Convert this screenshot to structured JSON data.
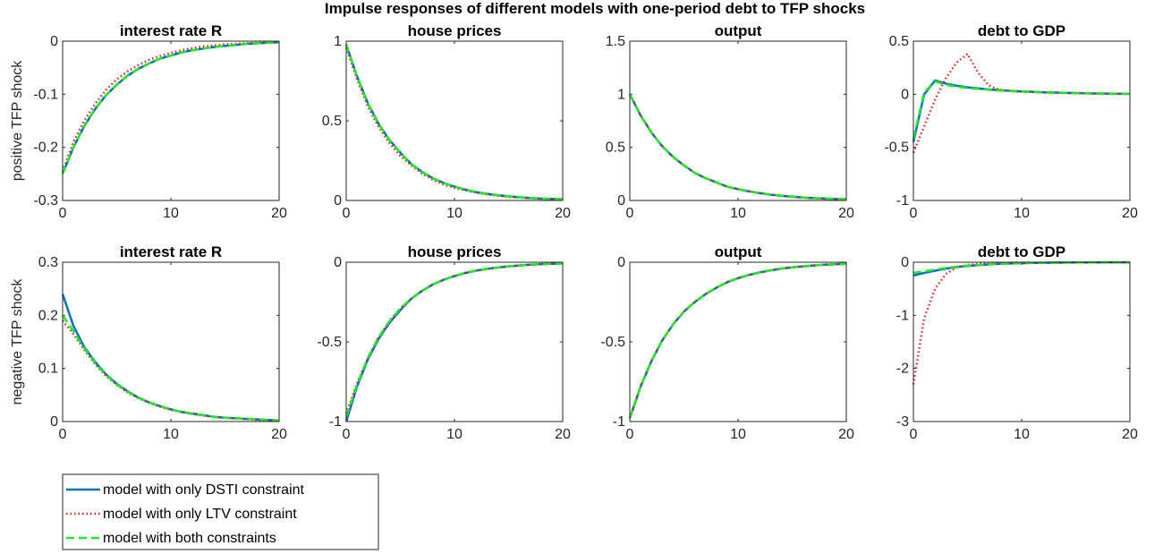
{
  "figure": {
    "title": "Impulse responses of different models with one-period debt to TFP shocks",
    "row_labels": [
      "positive TFP shock",
      "negative TFP shock"
    ]
  },
  "legend": {
    "placement": "bottom-left",
    "entries": [
      {
        "label": "model with only DSTI constraint",
        "color": "#0072BD",
        "style": "solid"
      },
      {
        "label": "model with only LTV constraint",
        "color": "#D62728",
        "style": "dotted"
      },
      {
        "label": "model with both constraints",
        "color": "#22E622",
        "style": "dashed"
      }
    ]
  },
  "chart_data": [
    {
      "type": "line",
      "row": 0,
      "col": 0,
      "title": "interest rate R",
      "xlim": [
        0,
        20
      ],
      "ylim": [
        -0.3,
        0
      ],
      "xticks": [
        "0",
        "10",
        "20"
      ],
      "yticks": [
        "-0.3",
        "-0.2",
        "-0.1",
        "0"
      ],
      "series": [
        {
          "name": "model with only DSTI constraint",
          "values": [
            -0.25,
            -0.2,
            -0.16,
            -0.128,
            -0.102,
            -0.082,
            -0.065,
            -0.052,
            -0.042,
            -0.033,
            -0.027,
            -0.021,
            -0.017,
            -0.014,
            -0.011,
            -0.009,
            -0.007,
            -0.005,
            -0.004,
            -0.003,
            -0.002
          ]
        },
        {
          "name": "model with only LTV constraint",
          "values": [
            -0.245,
            -0.19,
            -0.15,
            -0.118,
            -0.092,
            -0.072,
            -0.057,
            -0.045,
            -0.035,
            -0.028,
            -0.022,
            -0.017,
            -0.013,
            -0.01,
            -0.008,
            -0.006,
            -0.005,
            -0.004,
            -0.003,
            -0.002,
            -0.001
          ]
        },
        {
          "name": "model with both constraints",
          "values": [
            -0.25,
            -0.2,
            -0.16,
            -0.128,
            -0.102,
            -0.082,
            -0.065,
            -0.052,
            -0.042,
            -0.033,
            -0.027,
            -0.021,
            -0.017,
            -0.014,
            -0.011,
            -0.009,
            -0.007,
            -0.005,
            -0.004,
            -0.003,
            -0.002
          ]
        }
      ]
    },
    {
      "type": "line",
      "row": 0,
      "col": 1,
      "title": "house prices",
      "xlim": [
        0,
        20
      ],
      "ylim": [
        0,
        1
      ],
      "xticks": [
        "0",
        "10",
        "20"
      ],
      "yticks": [
        "0",
        "0.5",
        "1"
      ],
      "series": [
        {
          "name": "model with only DSTI constraint",
          "values": [
            0.98,
            0.78,
            0.61,
            0.48,
            0.38,
            0.3,
            0.23,
            0.18,
            0.14,
            0.11,
            0.087,
            0.068,
            0.053,
            0.042,
            0.033,
            0.026,
            0.02,
            0.016,
            0.012,
            0.01,
            0.008
          ]
        },
        {
          "name": "model with only LTV constraint",
          "values": [
            0.96,
            0.76,
            0.59,
            0.46,
            0.36,
            0.28,
            0.22,
            0.17,
            0.13,
            0.1,
            0.08,
            0.063,
            0.049,
            0.038,
            0.03,
            0.023,
            0.018,
            0.014,
            0.011,
            0.009,
            0.007
          ]
        },
        {
          "name": "model with both constraints",
          "values": [
            0.98,
            0.78,
            0.61,
            0.48,
            0.38,
            0.3,
            0.23,
            0.18,
            0.14,
            0.11,
            0.087,
            0.068,
            0.053,
            0.042,
            0.033,
            0.026,
            0.02,
            0.016,
            0.012,
            0.01,
            0.008
          ]
        }
      ]
    },
    {
      "type": "line",
      "row": 0,
      "col": 2,
      "title": "output",
      "xlim": [
        0,
        20
      ],
      "ylim": [
        0,
        1.5
      ],
      "xticks": [
        "0",
        "10",
        "20"
      ],
      "yticks": [
        "0",
        "0.5",
        "1",
        "1.5"
      ],
      "series": [
        {
          "name": "model with only DSTI constraint",
          "values": [
            1,
            0.8,
            0.64,
            0.51,
            0.41,
            0.33,
            0.26,
            0.21,
            0.17,
            0.13,
            0.107,
            0.086,
            0.069,
            0.055,
            0.044,
            0.035,
            0.028,
            0.022,
            0.018,
            0.014,
            0.012
          ]
        },
        {
          "name": "model with only LTV constraint",
          "values": [
            1,
            0.8,
            0.64,
            0.51,
            0.41,
            0.33,
            0.26,
            0.21,
            0.17,
            0.13,
            0.107,
            0.086,
            0.069,
            0.055,
            0.044,
            0.035,
            0.028,
            0.022,
            0.018,
            0.014,
            0.012
          ]
        },
        {
          "name": "model with both constraints",
          "values": [
            1,
            0.8,
            0.64,
            0.51,
            0.41,
            0.33,
            0.26,
            0.21,
            0.17,
            0.13,
            0.107,
            0.086,
            0.069,
            0.055,
            0.044,
            0.035,
            0.028,
            0.022,
            0.018,
            0.014,
            0.012
          ]
        }
      ]
    },
    {
      "type": "line",
      "row": 0,
      "col": 3,
      "title": "debt to GDP",
      "xlim": [
        0,
        20
      ],
      "ylim": [
        -1,
        0.5
      ],
      "xticks": [
        "0",
        "10",
        "20"
      ],
      "yticks": [
        "-1",
        "-0.5",
        "0",
        "0.5"
      ],
      "series": [
        {
          "name": "model with only DSTI constraint",
          "values": [
            -0.45,
            0,
            0.13,
            0.1,
            0.08,
            0.065,
            0.055,
            0.045,
            0.038,
            0.032,
            0.027,
            0.023,
            0.019,
            0.016,
            0.013,
            0.011,
            0.009,
            0.007,
            0.006,
            0.005,
            0.004
          ]
        },
        {
          "name": "model with only LTV constraint",
          "values": [
            -0.55,
            -0.3,
            -0.05,
            0.15,
            0.3,
            0.38,
            0.2,
            0.08,
            0.04,
            0.03,
            0.025,
            0.02,
            0.017,
            0.014,
            0.012,
            0.01,
            0.008,
            0.006,
            0.005,
            0.004,
            0.003
          ]
        },
        {
          "name": "model with both constraints",
          "values": [
            -0.42,
            0.02,
            0.12,
            0.09,
            0.07,
            0.06,
            0.05,
            0.042,
            0.035,
            0.03,
            0.025,
            0.021,
            0.017,
            0.014,
            0.012,
            0.01,
            0.008,
            0.006,
            0.005,
            0.004,
            0.003
          ]
        }
      ]
    },
    {
      "type": "line",
      "row": 1,
      "col": 0,
      "title": "interest rate R",
      "xlim": [
        0,
        20
      ],
      "ylim": [
        0,
        0.3
      ],
      "xticks": [
        "0",
        "10",
        "20"
      ],
      "yticks": [
        "0",
        "0.1",
        "0.2",
        "0.3"
      ],
      "series": [
        {
          "name": "model with only DSTI constraint",
          "values": [
            0.24,
            0.18,
            0.14,
            0.112,
            0.089,
            0.071,
            0.057,
            0.045,
            0.036,
            0.029,
            0.023,
            0.018,
            0.015,
            0.012,
            0.009,
            0.007,
            0.006,
            0.005,
            0.004,
            0.003,
            0.002
          ]
        },
        {
          "name": "model with only LTV constraint",
          "values": [
            0.19,
            0.165,
            0.135,
            0.108,
            0.086,
            0.069,
            0.055,
            0.044,
            0.035,
            0.028,
            0.022,
            0.018,
            0.014,
            0.011,
            0.009,
            0.007,
            0.006,
            0.004,
            0.003,
            0.003,
            0.002
          ]
        },
        {
          "name": "model with both constraints",
          "values": [
            0.2,
            0.17,
            0.138,
            0.11,
            0.088,
            0.07,
            0.056,
            0.045,
            0.036,
            0.029,
            0.023,
            0.018,
            0.015,
            0.012,
            0.009,
            0.007,
            0.006,
            0.005,
            0.004,
            0.003,
            0.002
          ]
        }
      ]
    },
    {
      "type": "line",
      "row": 1,
      "col": 1,
      "title": "house prices",
      "xlim": [
        0,
        20
      ],
      "ylim": [
        -1,
        0
      ],
      "xticks": [
        "0",
        "10",
        "20"
      ],
      "yticks": [
        "-1",
        "-0.5",
        "0"
      ],
      "series": [
        {
          "name": "model with only DSTI constraint",
          "values": [
            -1,
            -0.78,
            -0.61,
            -0.48,
            -0.38,
            -0.3,
            -0.23,
            -0.18,
            -0.14,
            -0.11,
            -0.087,
            -0.068,
            -0.053,
            -0.042,
            -0.033,
            -0.026,
            -0.02,
            -0.016,
            -0.012,
            -0.01,
            -0.008
          ]
        },
        {
          "name": "model with only LTV constraint",
          "values": [
            -0.95,
            -0.76,
            -0.6,
            -0.47,
            -0.37,
            -0.29,
            -0.23,
            -0.18,
            -0.14,
            -0.11,
            -0.085,
            -0.066,
            -0.052,
            -0.041,
            -0.032,
            -0.025,
            -0.02,
            -0.015,
            -0.012,
            -0.009,
            -0.007
          ]
        },
        {
          "name": "model with both constraints",
          "values": [
            -0.97,
            -0.77,
            -0.6,
            -0.47,
            -0.37,
            -0.29,
            -0.23,
            -0.18,
            -0.14,
            -0.11,
            -0.086,
            -0.067,
            -0.053,
            -0.041,
            -0.032,
            -0.025,
            -0.02,
            -0.016,
            -0.012,
            -0.01,
            -0.008
          ]
        }
      ]
    },
    {
      "type": "line",
      "row": 1,
      "col": 2,
      "title": "output",
      "xlim": [
        0,
        20
      ],
      "ylim": [
        -1,
        0
      ],
      "xticks": [
        "0",
        "10",
        "20"
      ],
      "yticks": [
        "-1",
        "-0.5",
        "0"
      ],
      "series": [
        {
          "name": "model with only DSTI constraint",
          "values": [
            -0.98,
            -0.78,
            -0.62,
            -0.49,
            -0.39,
            -0.31,
            -0.25,
            -0.2,
            -0.16,
            -0.125,
            -0.1,
            -0.08,
            -0.064,
            -0.051,
            -0.04,
            -0.032,
            -0.026,
            -0.02,
            -0.016,
            -0.013,
            -0.01
          ]
        },
        {
          "name": "model with only LTV constraint",
          "values": [
            -0.98,
            -0.78,
            -0.62,
            -0.49,
            -0.39,
            -0.31,
            -0.25,
            -0.2,
            -0.16,
            -0.125,
            -0.1,
            -0.08,
            -0.064,
            -0.051,
            -0.04,
            -0.032,
            -0.026,
            -0.02,
            -0.016,
            -0.013,
            -0.01
          ]
        },
        {
          "name": "model with both constraints",
          "values": [
            -0.98,
            -0.78,
            -0.62,
            -0.49,
            -0.39,
            -0.31,
            -0.25,
            -0.2,
            -0.16,
            -0.125,
            -0.1,
            -0.08,
            -0.064,
            -0.051,
            -0.04,
            -0.032,
            -0.026,
            -0.02,
            -0.016,
            -0.013,
            -0.01
          ]
        }
      ]
    },
    {
      "type": "line",
      "row": 1,
      "col": 3,
      "title": "debt to GDP",
      "xlim": [
        0,
        20
      ],
      "ylim": [
        -3,
        0
      ],
      "xticks": [
        "0",
        "10",
        "20"
      ],
      "yticks": [
        "-3",
        "-2",
        "-1",
        "0"
      ],
      "series": [
        {
          "name": "model with only DSTI constraint",
          "values": [
            -0.25,
            -0.2,
            -0.16,
            -0.12,
            -0.09,
            -0.07,
            -0.055,
            -0.04,
            -0.03,
            -0.023,
            -0.018,
            -0.014,
            -0.011,
            -0.008,
            -0.006,
            -0.005,
            -0.004,
            -0.003,
            -0.002,
            -0.002,
            -0.001
          ]
        },
        {
          "name": "model with only LTV constraint",
          "values": [
            -2.3,
            -1.05,
            -0.5,
            -0.22,
            -0.1,
            -0.05,
            -0.03,
            -0.02,
            -0.015,
            -0.012,
            -0.01,
            -0.008,
            -0.006,
            -0.005,
            -0.004,
            -0.003,
            -0.002,
            -0.002,
            -0.001,
            -0.001,
            -0.001
          ]
        },
        {
          "name": "model with both constraints",
          "values": [
            -0.2,
            -0.17,
            -0.14,
            -0.11,
            -0.085,
            -0.065,
            -0.05,
            -0.038,
            -0.029,
            -0.022,
            -0.017,
            -0.013,
            -0.01,
            -0.008,
            -0.006,
            -0.005,
            -0.004,
            -0.003,
            -0.002,
            -0.002,
            -0.001
          ]
        }
      ]
    }
  ]
}
